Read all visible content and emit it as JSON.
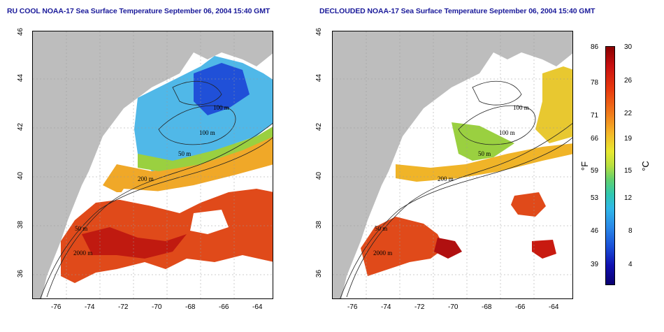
{
  "titles": {
    "left": "RU COOL NOAA-17 Sea Surface Temperature September 06, 2004 15:40 GMT",
    "right": "DECLOUDED NOAA-17 Sea Surface Temperature September 06, 2004 15:40 GMT"
  },
  "axes": {
    "x_ticks": [
      "-76",
      "-74",
      "-72",
      "-70",
      "-68",
      "-66",
      "-64"
    ],
    "y_ticks": [
      "36",
      "38",
      "40",
      "42",
      "44",
      "46"
    ],
    "x_range": [
      -77.2,
      -62.8
    ],
    "y_range": [
      35.3,
      46.2
    ]
  },
  "contour_labels": {
    "left": [
      "100 m",
      "100 m",
      "50 m",
      "200 m",
      "50 m",
      "2000 m"
    ],
    "right": [
      "100 m",
      "100 m",
      "50 m",
      "200 m",
      "50 m",
      "2000 m"
    ]
  },
  "colorbar": {
    "fahrenheit_label": "°F",
    "celsius_label": "°C",
    "fahrenheit_ticks": [
      "86",
      "78",
      "71",
      "66",
      "59",
      "53",
      "46",
      "39"
    ],
    "celsius_ticks": [
      "30",
      "26",
      "22",
      "19",
      "15",
      "12",
      "8",
      "4"
    ]
  },
  "colors": {
    "land": "#bdbdbd",
    "title": "#1a1a9a",
    "warm": "#d8341a",
    "cool": "#2a6ae0"
  }
}
